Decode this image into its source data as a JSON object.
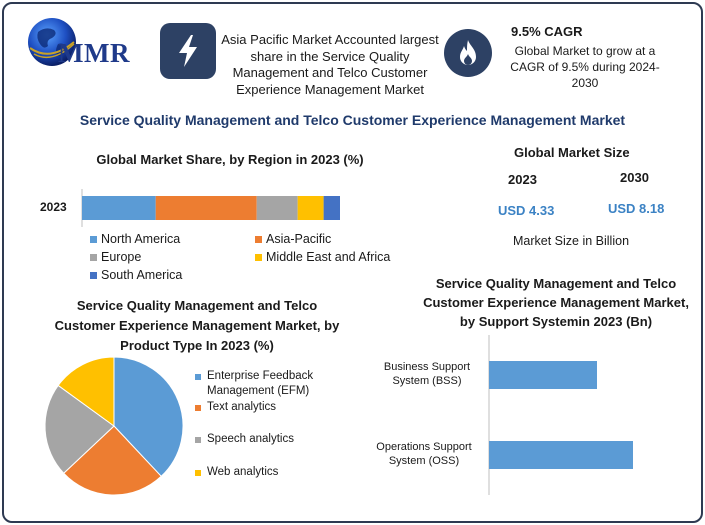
{
  "header": {
    "logo_text": "MMR",
    "highlight_text": "Asia Pacific Market Accounted largest share in the Service Quality Management and Telco Customer Experience Management Market",
    "cagr_title": "9.5% CAGR",
    "cagr_desc": "Global Market to grow at a CAGR of 9.5% during 2024-2030"
  },
  "main_title": "Service Quality Management and Telco Customer Experience Management Market",
  "market_size": {
    "title": "Global Market Size",
    "year1": "2023",
    "year2": "2030",
    "value1": "USD 4.33",
    "value2": "USD 8.18",
    "unit_note": "Market Size in Billion"
  },
  "colors": {
    "north_america": "#5b9bd5",
    "asia_pacific": "#ed7d31",
    "europe": "#a5a5a5",
    "middle_east_africa": "#ffc000",
    "south_america": "#4472c4",
    "dark_navy": "#2d4164"
  },
  "chart_data": [
    {
      "type": "bar",
      "orientation": "horizontal-stacked",
      "title": "Global Market Share, by Region in 2023 (%)",
      "categories": [
        "2023"
      ],
      "series": [
        {
          "name": "North America",
          "values": [
            27
          ]
        },
        {
          "name": "Asia-Pacific",
          "values": [
            37
          ]
        },
        {
          "name": "Europe",
          "values": [
            15
          ]
        },
        {
          "name": "Middle East and Africa",
          "values": [
            9.5
          ]
        },
        {
          "name": "South America",
          "values": [
            6
          ]
        }
      ],
      "legend_position": "bottom"
    },
    {
      "type": "pie",
      "title": "Service Quality Management and Telco Customer Experience Management Market, by Product Type In 2023 (%)",
      "labels": [
        "Enterprise Feedback Management (EFM)",
        "Text analytics",
        "Speech analytics",
        "Web analytics"
      ],
      "values": [
        38,
        25,
        22,
        15
      ],
      "legend_position": "right"
    },
    {
      "type": "bar",
      "orientation": "horizontal",
      "title": "Service Quality Management and Telco Customer Experience Management Market, by Support Systemin 2023 (Bn)",
      "categories": [
        "Business Support System (BSS)",
        "Operations Support System (OSS)"
      ],
      "values": [
        1.8,
        2.4
      ],
      "xlim": [
        0,
        3
      ]
    }
  ]
}
